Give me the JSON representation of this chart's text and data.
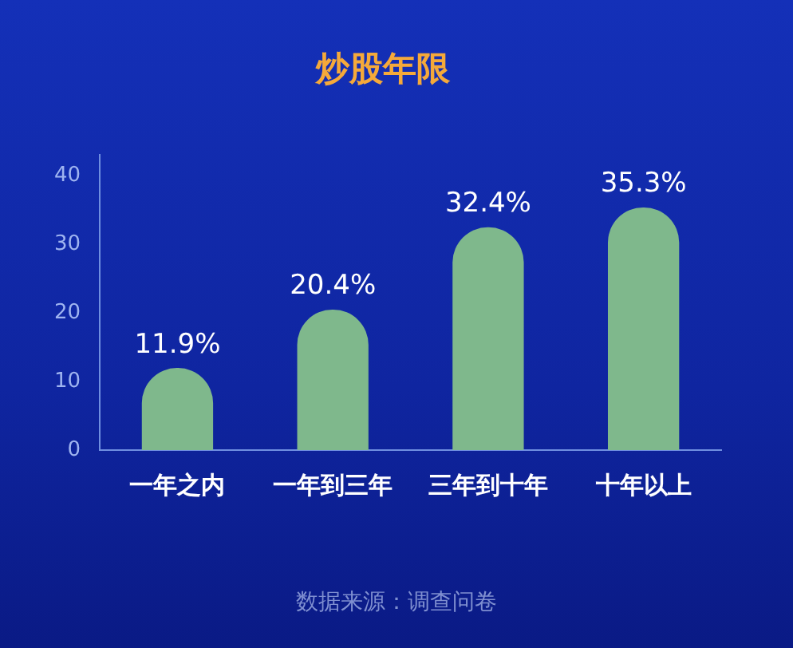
{
  "chart_data": {
    "type": "bar",
    "title": "炒股年限",
    "categories": [
      "一年之内",
      "一年到三年",
      "三年到十年",
      "十年以上"
    ],
    "values": [
      11.9,
      20.4,
      32.4,
      35.3
    ],
    "value_labels": [
      "11.9%",
      "20.4%",
      "32.4%",
      "35.3%"
    ],
    "color": "#7fb88c",
    "ylim": [
      0,
      43
    ],
    "yticks": [
      0,
      10,
      20,
      30,
      40
    ],
    "grid": false,
    "legend": false,
    "annotations": [
      "数据来源：调查问卷"
    ]
  }
}
